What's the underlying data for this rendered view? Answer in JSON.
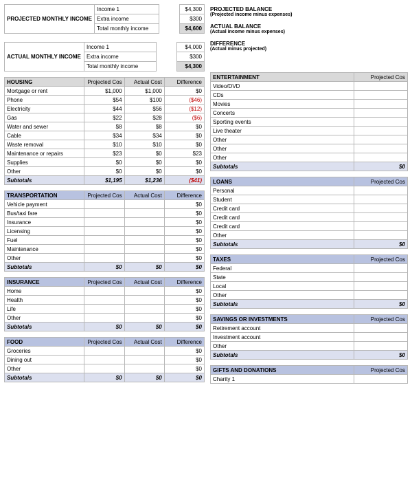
{
  "colors": {
    "header_gray": "#d9d9d9",
    "header_blue": "#b8c2e0",
    "row_blue": "#dce0ef",
    "border": "#b7b7b7",
    "neg": "#c00000",
    "bg": "#ffffff"
  },
  "income": {
    "projected": {
      "label": "PROJECTED MONTHLY INCOME",
      "rows": [
        {
          "name": "Income 1",
          "value": "$4,300"
        },
        {
          "name": "Extra income",
          "value": "$300"
        },
        {
          "name": "Total monthly income",
          "value": "$4,600",
          "strong": true
        }
      ]
    },
    "actual": {
      "label": "ACTUAL MONTHLY INCOME",
      "rows": [
        {
          "name": "Income 1",
          "value": "$4,000"
        },
        {
          "name": "Extra income",
          "value": "$300"
        },
        {
          "name": "Total monthly income",
          "value": "$4,300",
          "strong": true
        }
      ]
    }
  },
  "balance": {
    "proj_title": "PROJECTED BALANCE",
    "proj_sub": "(Projected income minus expenses)",
    "act_title": "ACTUAL BALANCE",
    "act_sub": "(Actual income minus expenses)",
    "diff_title": "DIFFERENCE",
    "diff_sub": "(Actual minus projected)"
  },
  "col_headers": {
    "proj": "Projected Cos",
    "act": "Actual Cost",
    "diff": "Difference"
  },
  "left_sections": [
    {
      "title": "HOUSING",
      "hdr_style": "gray",
      "rows": [
        {
          "name": "Mortgage or rent",
          "proj": "$1,000",
          "act": "$1,000",
          "diff": "$0"
        },
        {
          "name": "Phone",
          "proj": "$54",
          "act": "$100",
          "diff": "($46)",
          "neg": true
        },
        {
          "name": "Electricity",
          "proj": "$44",
          "act": "$56",
          "diff": "($12)",
          "neg": true
        },
        {
          "name": "Gas",
          "proj": "$22",
          "act": "$28",
          "diff": "($6)",
          "neg": true
        },
        {
          "name": "Water and sewer",
          "proj": "$8",
          "act": "$8",
          "diff": "$0"
        },
        {
          "name": "Cable",
          "proj": "$34",
          "act": "$34",
          "diff": "$0"
        },
        {
          "name": "Waste removal",
          "proj": "$10",
          "act": "$10",
          "diff": "$0"
        },
        {
          "name": "Maintenance or repairs",
          "proj": "$23",
          "act": "$0",
          "diff": "$23"
        },
        {
          "name": "Supplies",
          "proj": "$0",
          "act": "$0",
          "diff": "$0"
        },
        {
          "name": "Other",
          "proj": "$0",
          "act": "$0",
          "diff": "$0"
        }
      ],
      "subtotal": {
        "label": "Subtotals",
        "proj": "$1,195",
        "act": "$1,236",
        "diff": "($41)",
        "neg": true
      }
    },
    {
      "title": "TRANSPORTATION",
      "hdr_style": "blue",
      "rows": [
        {
          "name": "Vehicle payment",
          "proj": "",
          "act": "",
          "diff": "$0"
        },
        {
          "name": "Bus/taxi fare",
          "proj": "",
          "act": "",
          "diff": "$0"
        },
        {
          "name": "Insurance",
          "proj": "",
          "act": "",
          "diff": "$0"
        },
        {
          "name": "Licensing",
          "proj": "",
          "act": "",
          "diff": "$0"
        },
        {
          "name": "Fuel",
          "proj": "",
          "act": "",
          "diff": "$0"
        },
        {
          "name": "Maintenance",
          "proj": "",
          "act": "",
          "diff": "$0"
        },
        {
          "name": "Other",
          "proj": "",
          "act": "",
          "diff": "$0"
        }
      ],
      "subtotal": {
        "label": "Subtotals",
        "proj": "$0",
        "act": "$0",
        "diff": "$0"
      }
    },
    {
      "title": "INSURANCE",
      "hdr_style": "blue",
      "rows": [
        {
          "name": "Home",
          "proj": "",
          "act": "",
          "diff": "$0"
        },
        {
          "name": "Health",
          "proj": "",
          "act": "",
          "diff": "$0"
        },
        {
          "name": "Life",
          "proj": "",
          "act": "",
          "diff": "$0"
        },
        {
          "name": "Other",
          "proj": "",
          "act": "",
          "diff": "$0"
        }
      ],
      "subtotal": {
        "label": "Subtotals",
        "proj": "$0",
        "act": "$0",
        "diff": "$0"
      }
    },
    {
      "title": "FOOD",
      "hdr_style": "blue",
      "rows": [
        {
          "name": "Groceries",
          "proj": "",
          "act": "",
          "diff": "$0"
        },
        {
          "name": "Dining out",
          "proj": "",
          "act": "",
          "diff": "$0"
        },
        {
          "name": "Other",
          "proj": "",
          "act": "",
          "diff": "$0"
        }
      ],
      "subtotal": {
        "label": "Subtotals",
        "proj": "$0",
        "act": "$0",
        "diff": "$0"
      }
    }
  ],
  "right_sections": [
    {
      "title": "ENTERTAINMENT",
      "hdr_style": "gray",
      "rows": [
        {
          "name": "Video/DVD"
        },
        {
          "name": "CDs"
        },
        {
          "name": "Movies"
        },
        {
          "name": "Concerts"
        },
        {
          "name": "Sporting events"
        },
        {
          "name": "Live theater"
        },
        {
          "name": "Other"
        },
        {
          "name": "Other"
        },
        {
          "name": "Other"
        }
      ],
      "subtotal": {
        "label": "Subtotals",
        "proj": "$0"
      }
    },
    {
      "title": "LOANS",
      "hdr_style": "blue",
      "rows": [
        {
          "name": "Personal"
        },
        {
          "name": "Student"
        },
        {
          "name": "Credit card"
        },
        {
          "name": "Credit card"
        },
        {
          "name": "Credit card"
        },
        {
          "name": "Other"
        }
      ],
      "subtotal": {
        "label": "Subtotals",
        "proj": "$0"
      }
    },
    {
      "title": "TAXES",
      "hdr_style": "blue",
      "rows": [
        {
          "name": "Federal"
        },
        {
          "name": "State"
        },
        {
          "name": "Local"
        },
        {
          "name": "Other"
        }
      ],
      "subtotal": {
        "label": "Subtotals",
        "proj": "$0"
      }
    },
    {
      "title": "SAVINGS OR INVESTMENTS",
      "hdr_style": "blue",
      "rows": [
        {
          "name": "Retirement account"
        },
        {
          "name": "Investment account"
        },
        {
          "name": "Other"
        }
      ],
      "subtotal": {
        "label": "Subtotals",
        "proj": "$0"
      }
    },
    {
      "title": "GIFTS AND DONATIONS",
      "hdr_style": "blue",
      "rows": [
        {
          "name": "Charity 1"
        }
      ],
      "subtotal": null
    }
  ]
}
